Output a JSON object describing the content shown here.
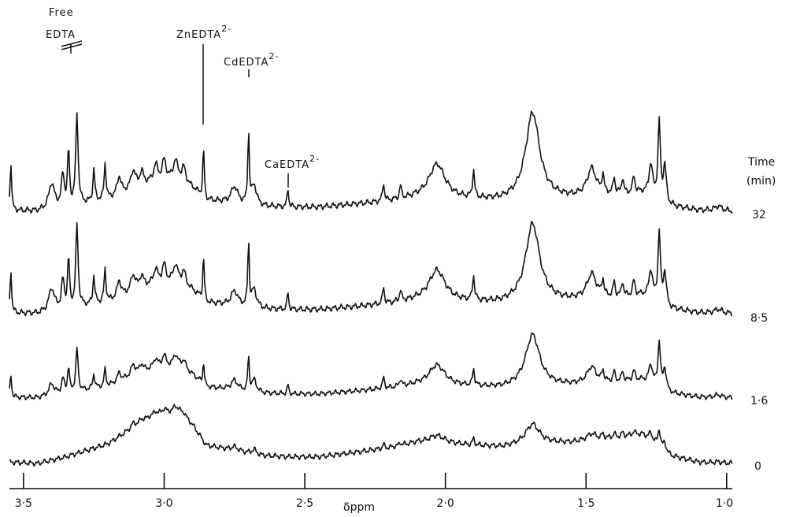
{
  "chart_data": {
    "type": "line",
    "title": "",
    "xlabel": "δppm",
    "ylabel": "",
    "x_reversed": true,
    "xlim": [
      3.55,
      0.98
    ],
    "x_ticks": [
      3.5,
      3.0,
      2.5,
      2.0,
      1.5,
      1.0
    ],
    "x_tick_labels": [
      "3·5",
      "3·0",
      "2·5",
      "2·0",
      "1·5",
      "1·0"
    ],
    "time_header": [
      "Time",
      "(min)"
    ],
    "series": [
      {
        "name": "32",
        "color": "#111111"
      },
      {
        "name": "8·5",
        "color": "#111111"
      },
      {
        "name": "1·6",
        "color": "#111111"
      },
      {
        "name": "0",
        "color": "#111111"
      }
    ],
    "annotations": [
      {
        "line1": "Free",
        "line2": "EDTA",
        "ppm": 3.34
      },
      {
        "text": "ZnEDTA",
        "sup": "2-",
        "ppm": 2.86
      },
      {
        "text": "CdEDTA",
        "sup": "2-",
        "ppm": 2.7
      },
      {
        "text": "CaEDTA",
        "sup": "2-",
        "ppm": 2.56
      }
    ],
    "peaks": [
      [
        3.545,
        0.55,
        0.003,
        1
      ],
      [
        3.4,
        0.28,
        0.012,
        1
      ],
      [
        3.36,
        0.35,
        0.006,
        1
      ],
      [
        3.34,
        0.6,
        0.004,
        1
      ],
      [
        3.31,
        1.0,
        0.005,
        1
      ],
      [
        3.25,
        0.35,
        0.004,
        1
      ],
      [
        3.21,
        0.4,
        0.004,
        1
      ],
      [
        3.16,
        0.2,
        0.008,
        1
      ],
      [
        3.11,
        0.2,
        0.01,
        0
      ],
      [
        3.08,
        0.15,
        0.008,
        0
      ],
      [
        3.03,
        0.18,
        0.009,
        0
      ],
      [
        3.0,
        0.22,
        0.008,
        0
      ],
      [
        2.96,
        0.2,
        0.009,
        0
      ],
      [
        2.93,
        0.16,
        0.008,
        0
      ],
      [
        2.86,
        0.55,
        0.003,
        1
      ],
      [
        2.75,
        0.18,
        0.014,
        0
      ],
      [
        2.7,
        0.8,
        0.003,
        1
      ],
      [
        2.68,
        0.22,
        0.01,
        0
      ],
      [
        2.56,
        0.22,
        0.003,
        1
      ],
      [
        2.22,
        0.2,
        0.004,
        0
      ],
      [
        2.16,
        0.14,
        0.004,
        0
      ],
      [
        2.03,
        0.38,
        0.035,
        0
      ],
      [
        1.9,
        0.3,
        0.004,
        0
      ],
      [
        1.69,
        0.95,
        0.03,
        0
      ],
      [
        1.48,
        0.3,
        0.02,
        0
      ],
      [
        1.44,
        0.2,
        0.004,
        0
      ],
      [
        1.4,
        0.18,
        0.004,
        0
      ],
      [
        1.37,
        0.18,
        0.004,
        0
      ],
      [
        1.33,
        0.18,
        0.005,
        0
      ],
      [
        1.27,
        0.35,
        0.008,
        0
      ],
      [
        1.24,
        0.85,
        0.005,
        0
      ],
      [
        1.22,
        0.4,
        0.006,
        0
      ],
      [
        1.03,
        0.05,
        0.015,
        0
      ]
    ],
    "envelope": [
      [
        3.55,
        0.02
      ],
      [
        3.45,
        0.0
      ],
      [
        3.35,
        0.1
      ],
      [
        3.2,
        0.3
      ],
      [
        3.05,
        0.72
      ],
      [
        2.95,
        0.82
      ],
      [
        2.9,
        0.6
      ],
      [
        2.85,
        0.28
      ],
      [
        2.75,
        0.2
      ],
      [
        2.65,
        0.12
      ],
      [
        2.55,
        0.1
      ],
      [
        2.45,
        0.1
      ],
      [
        2.3,
        0.18
      ],
      [
        2.2,
        0.24
      ],
      [
        2.1,
        0.32
      ],
      [
        2.0,
        0.3
      ],
      [
        1.92,
        0.28
      ],
      [
        1.8,
        0.25
      ],
      [
        1.7,
        0.3
      ],
      [
        1.55,
        0.32
      ],
      [
        1.4,
        0.4
      ],
      [
        1.3,
        0.45
      ],
      [
        1.2,
        0.12
      ],
      [
        1.1,
        0.02
      ],
      [
        0.98,
        0.0
      ]
    ]
  }
}
